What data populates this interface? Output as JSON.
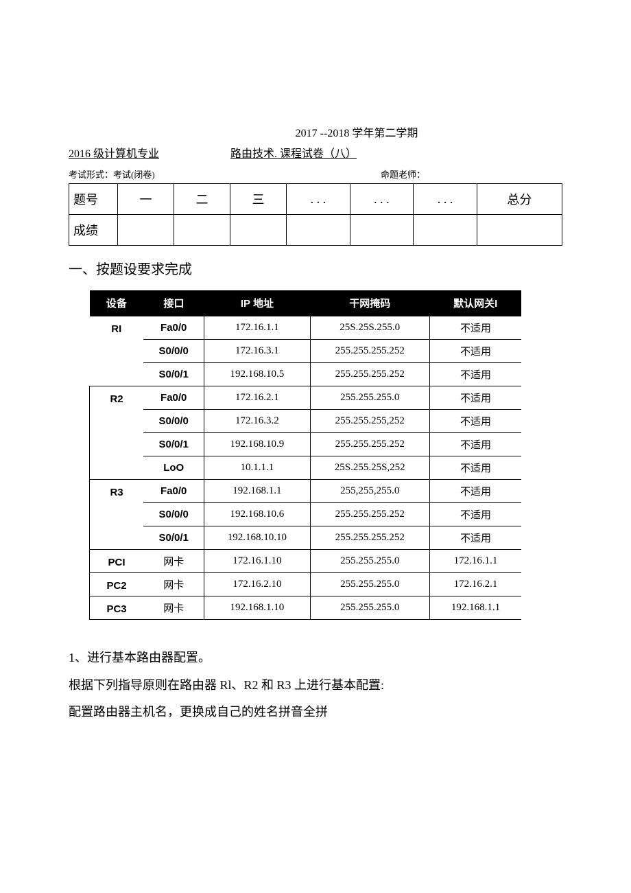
{
  "header": {
    "year_line": "2017    --2018 学年第二学期",
    "grade_major": "2016 级计算机专业",
    "course_paper": "路由技术. 课程试卷（八）",
    "exam_form_label": "考试形式：考试(闭卷)",
    "teacher_label": "命题老师："
  },
  "score_table": {
    "row1": [
      "题号",
      "一",
      "二",
      "三",
      ". . .",
      ". . .",
      ". . .",
      "总分"
    ],
    "row2_label": "成绩"
  },
  "section1_title": "一、按题设要求完成",
  "addr": {
    "headers": [
      "设备",
      "接口",
      "IP 地址",
      "干网掩码",
      "默认网关I"
    ],
    "rows": [
      {
        "dev": "RI",
        "iface": "Fa0/0",
        "ip": "172.16.1.1",
        "mask": "25S.25S.255.0",
        "gw": "不适用",
        "sep": false,
        "dev_span": 3,
        "left": false
      },
      {
        "dev": "",
        "iface": "S0/0/0",
        "ip": "172.16.3.1",
        "mask": "255.255.255.252",
        "gw": "不适用",
        "sep": true,
        "left": false
      },
      {
        "dev": "",
        "iface": "S0/0/1",
        "ip": "192.168.10.5",
        "mask": "255.255.255.252",
        "gw": "不适用",
        "sep": true,
        "left": false
      },
      {
        "dev": "R2",
        "iface": "Fa0/0",
        "ip": "172.16.2.1",
        "mask": "255.255.255.0",
        "gw": "不适用",
        "sep": true,
        "dev_span": 4,
        "left": true
      },
      {
        "dev": "",
        "iface": "S0/0/0",
        "ip": "172.16.3.2",
        "mask": "255.255.255,252",
        "gw": "不适用",
        "sep": true,
        "left": true
      },
      {
        "dev": "",
        "iface": "S0/0/1",
        "ip": "192.168.10.9",
        "mask": "255.255.255.252",
        "gw": "不适用",
        "sep": true,
        "left": true
      },
      {
        "dev": "",
        "iface": "LoO",
        "ip": "10.1.1.1",
        "mask": "25S.255.25S,252",
        "gw": "不适用",
        "sep": true,
        "left": true
      },
      {
        "dev": "R3",
        "iface": "Fa0/0",
        "ip": "192.168.1.1",
        "mask": "255,255,255.0",
        "gw": "不适用",
        "sep": true,
        "dev_span": 3,
        "left": true
      },
      {
        "dev": "",
        "iface": "S0/0/0",
        "ip": "192.168.10.6",
        "mask": "255.255.255.252",
        "gw": "不适用",
        "sep": true,
        "left": true
      },
      {
        "dev": "",
        "iface": "S0/0/1",
        "ip": "192.168.10.10",
        "mask": "255.255.255.252",
        "gw": "不适用",
        "sep": true,
        "left": true
      },
      {
        "dev": "PCI",
        "iface": "网卡",
        "ip": "172.16.1.10",
        "mask": "255.255.255.0",
        "gw": "172.16.1.1",
        "sep": true,
        "dev_span": 1,
        "left": true,
        "iface_cn": true
      },
      {
        "dev": "PC2",
        "iface": "网卡",
        "ip": "172.16.2.10",
        "mask": "255.255.255.0",
        "gw": "172.16.2.1",
        "sep": true,
        "dev_span": 1,
        "left": true,
        "iface_cn": true
      },
      {
        "dev": "PC3",
        "iface": "网卡",
        "ip": "192.168.1.10",
        "mask": "255.255.255.0",
        "gw": "192.168.1.1",
        "sep": true,
        "dev_span": 1,
        "left": true,
        "iface_cn": true,
        "last": true
      }
    ]
  },
  "body": {
    "p1": "1、进行基本路由器配置。",
    "p2": "根据下列指导原则在路由器 Rl、R2 和 R3 上进行基本配置:",
    "p3": "配置路由器主机名，更换成自己的姓名拼音全拼"
  }
}
